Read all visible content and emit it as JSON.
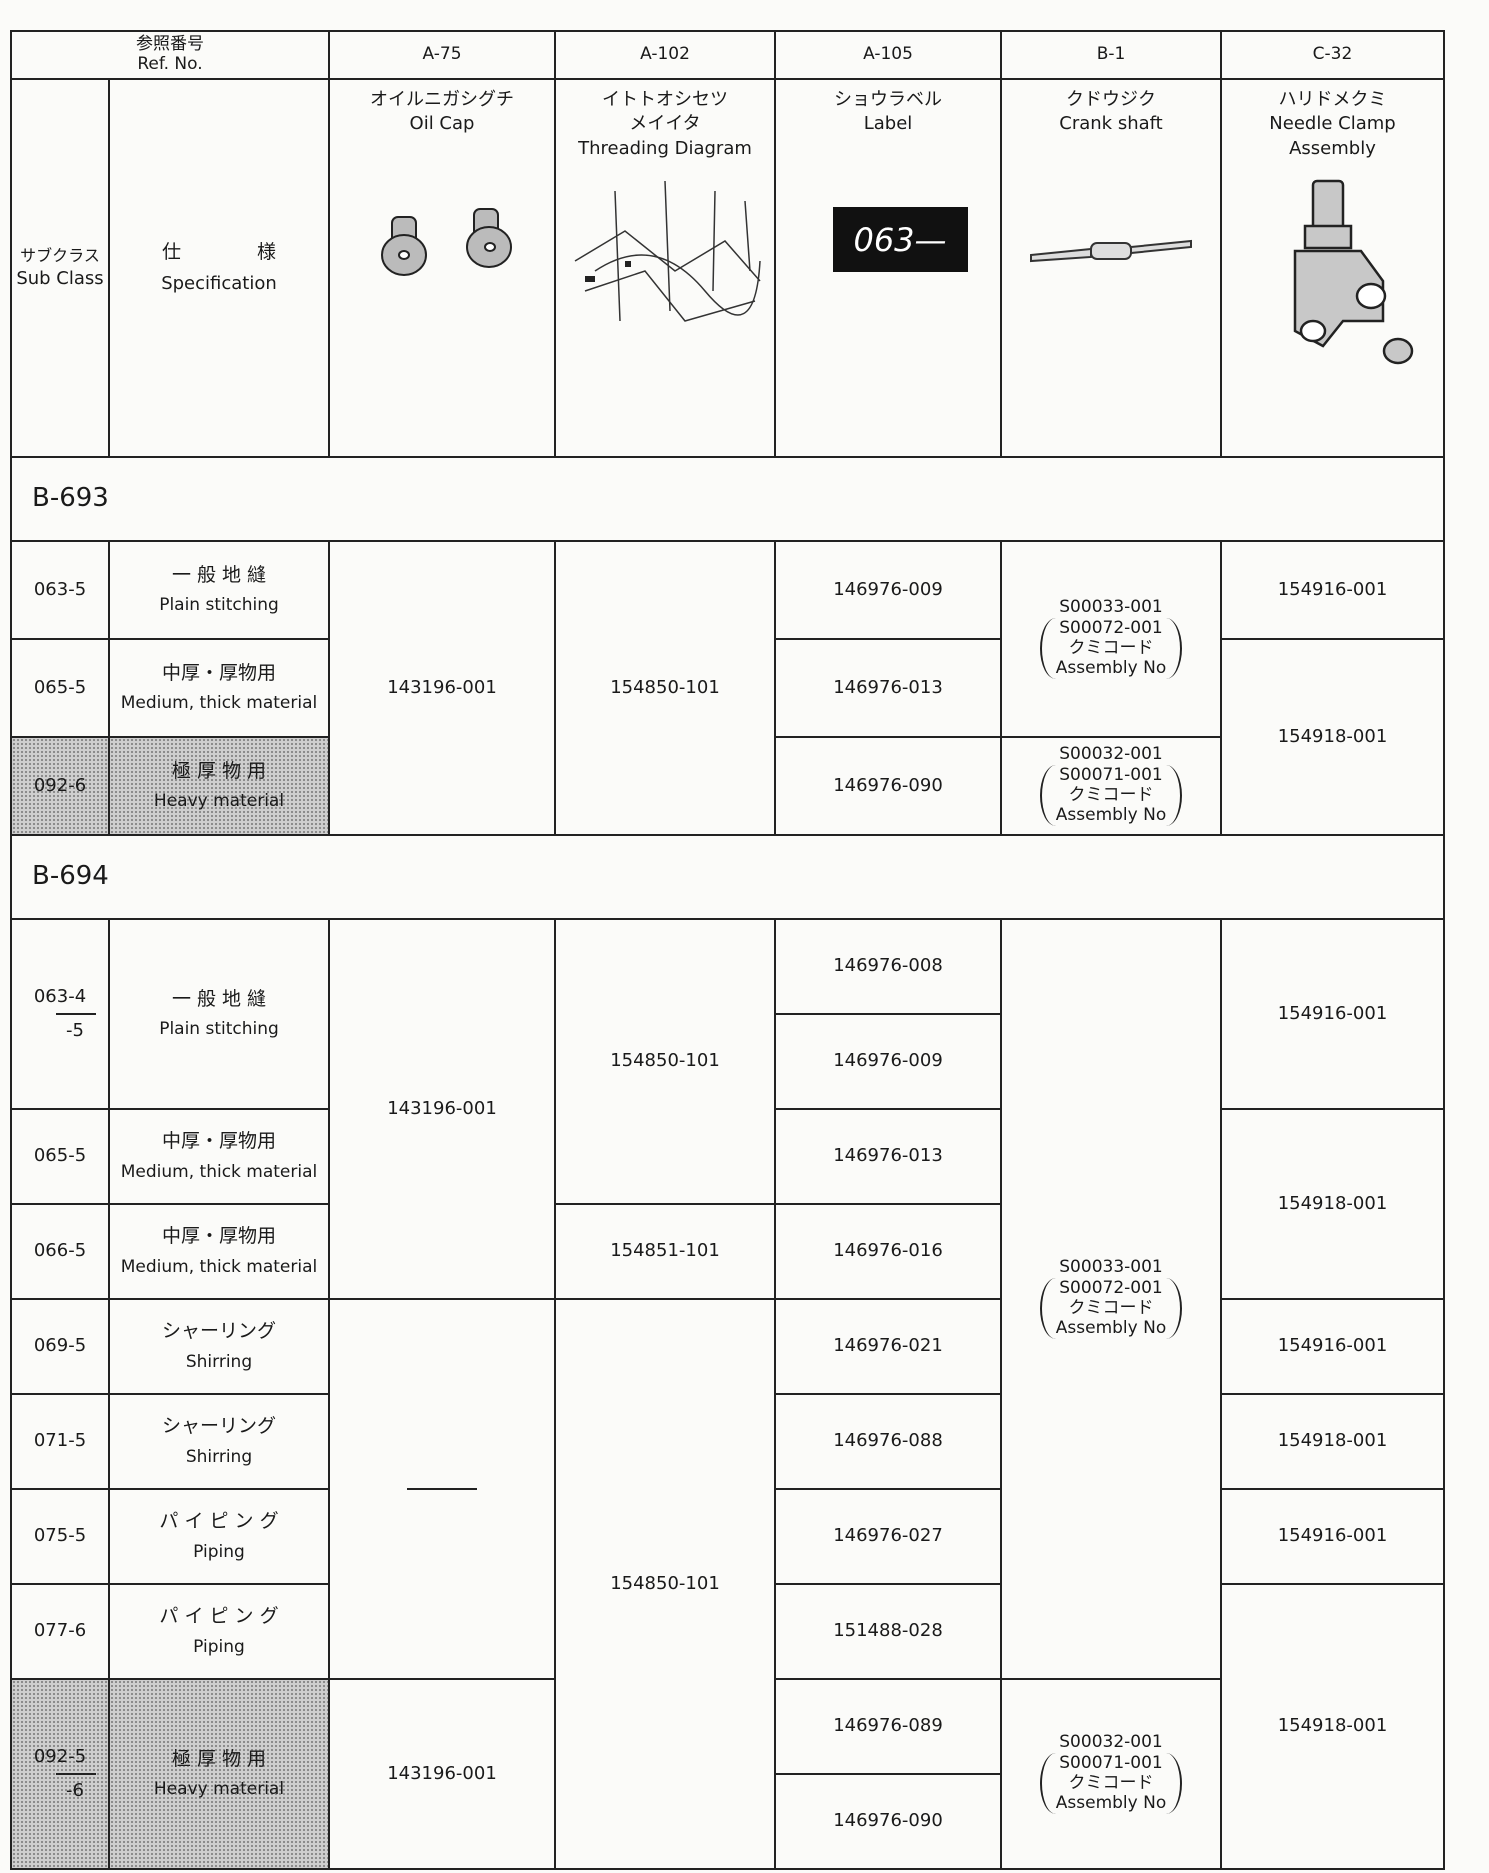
{
  "header": {
    "ref_no_ja": "参照番号",
    "ref_no_en": "Ref. No.",
    "sub_class_ja": "サブクラス",
    "sub_class_en": "Sub Class",
    "spec_ja": "仕 様",
    "spec_en": "Specification"
  },
  "columns": [
    {
      "ref": "A-75",
      "name_ja": [
        "オイルニガシグチ"
      ],
      "name_en": [
        "Oil Cap"
      ]
    },
    {
      "ref": "A-102",
      "name_ja": [
        "イトトオシセツ",
        "メイイタ"
      ],
      "name_en": [
        "Threading Diagram"
      ]
    },
    {
      "ref": "A-105",
      "name_ja": [
        "ショウラベル"
      ],
      "name_en": [
        "Label"
      ],
      "image_text": "063—"
    },
    {
      "ref": "B-1",
      "name_ja": [
        "クドウジク"
      ],
      "name_en": [
        "Crank shaft"
      ]
    },
    {
      "ref": "C-32",
      "name_ja": [
        "ハリドメクミ"
      ],
      "name_en": [
        "Needle Clamp",
        "Assembly"
      ]
    }
  ],
  "groups": [
    {
      "title": "B-693",
      "rows": [
        {
          "sub_class": [
            "063-5"
          ],
          "spec_ja": "一 般 地 縫",
          "spec_en": "Plain stitching"
        },
        {
          "sub_class": [
            "065-5"
          ],
          "spec_ja": "中厚・厚物用",
          "spec_en": "Medium, thick material"
        },
        {
          "sub_class": [
            "092-6"
          ],
          "spec_ja": "極 厚 物 用",
          "spec_en": "Heavy material"
        }
      ],
      "a75": [
        "143196-001"
      ],
      "a102": [
        "154850-101"
      ],
      "a105": [
        "146976-009",
        "146976-013",
        "146976-090"
      ],
      "b1": [
        {
          "parts": [
            "S00033-001",
            "S00072-001"
          ],
          "ja": "クミコード",
          "en": "Assembly No"
        },
        {
          "parts": [
            "S00032-001",
            "S00071-001"
          ],
          "ja": "クミコード",
          "en": "Assembly No"
        }
      ],
      "c32": [
        "154916-001",
        "154918-001"
      ]
    },
    {
      "title": "B-694",
      "rows": [
        {
          "sub_class": [
            "063-4",
            "-5"
          ],
          "spec_ja": "一 般 地 縫",
          "spec_en": "Plain stitching"
        },
        {
          "sub_class": [
            "065-5"
          ],
          "spec_ja": "中厚・厚物用",
          "spec_en": "Medium, thick material"
        },
        {
          "sub_class": [
            "066-5"
          ],
          "spec_ja": "中厚・厚物用",
          "spec_en": "Medium, thick material"
        },
        {
          "sub_class": [
            "069-5"
          ],
          "spec_ja": "シャーリング",
          "spec_en": "Shirring"
        },
        {
          "sub_class": [
            "071-5"
          ],
          "spec_ja": "シャーリング",
          "spec_en": "Shirring"
        },
        {
          "sub_class": [
            "075-5"
          ],
          "spec_ja": "パ イ ピ ン グ",
          "spec_en": "Piping"
        },
        {
          "sub_class": [
            "077-6"
          ],
          "spec_ja": "パ イ ピ ン グ",
          "spec_en": "Piping"
        },
        {
          "sub_class": [
            "092-5",
            "-6"
          ],
          "spec_ja": "極 厚 物 用",
          "spec_en": "Heavy material"
        }
      ],
      "a75": [
        "143196-001",
        "143196-001"
      ],
      "a102": [
        "154850-101",
        "154851-101",
        "154850-101"
      ],
      "a105": [
        "146976-008",
        "146976-009",
        "146976-013",
        "146976-016",
        "146976-021",
        "146976-088",
        "146976-027",
        "151488-028",
        "146976-089",
        "146976-090"
      ],
      "b1": [
        {
          "parts": [
            "S00033-001",
            "S00072-001"
          ],
          "ja": "クミコード",
          "en": "Assembly No"
        },
        {
          "parts": [
            "S00032-001",
            "S00071-001"
          ],
          "ja": "クミコード",
          "en": "Assembly No"
        }
      ],
      "c32": [
        "154916-001",
        "154918-001",
        "154916-001",
        "154918-001",
        "154916-001",
        "154918-001"
      ]
    }
  ]
}
